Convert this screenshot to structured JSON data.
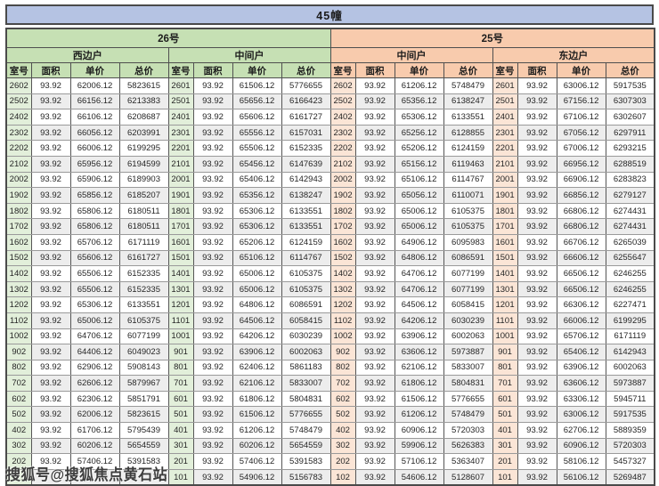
{
  "title": "45幢",
  "sections": [
    {
      "unit_no": "26号",
      "stacks": [
        "西边户",
        "中间户"
      ]
    },
    {
      "unit_no": "25号",
      "stacks": [
        "中间户",
        "东边户"
      ]
    }
  ],
  "column_headers": [
    "室号",
    "面积",
    "单价",
    "总价"
  ],
  "watermark": {
    "text": "搜狐号@搜狐焦点黄石站"
  },
  "obscured_row": {
    "position": "bottom-left group, last row",
    "visible_fragment": "743"
  },
  "colors": {
    "title_bg": "#b5c3e3",
    "green_header": "#c6e0b4",
    "green_room_cell": "#e2efda",
    "orange_header": "#f8cbad",
    "orange_room_cell": "#fbe5d6",
    "stripe": "#ededed",
    "border": "#4a4a4a"
  },
  "rows": [
    [
      "2602",
      "93.92",
      "62006.12",
      "5823615",
      "2601",
      "93.92",
      "61506.12",
      "5776655",
      "2602",
      "93.92",
      "61206.12",
      "5748479",
      "2601",
      "93.92",
      "63006.12",
      "5917535"
    ],
    [
      "2502",
      "93.92",
      "66156.12",
      "6213383",
      "2501",
      "93.92",
      "65656.12",
      "6166423",
      "2502",
      "93.92",
      "65356.12",
      "6138247",
      "2501",
      "93.92",
      "67156.12",
      "6307303"
    ],
    [
      "2402",
      "93.92",
      "66106.12",
      "6208687",
      "2401",
      "93.92",
      "65606.12",
      "6161727",
      "2402",
      "93.92",
      "65306.12",
      "6133551",
      "2401",
      "93.92",
      "67106.12",
      "6302607"
    ],
    [
      "2302",
      "93.92",
      "66056.12",
      "6203991",
      "2301",
      "93.92",
      "65556.12",
      "6157031",
      "2302",
      "93.92",
      "65256.12",
      "6128855",
      "2301",
      "93.92",
      "67056.12",
      "6297911"
    ],
    [
      "2202",
      "93.92",
      "66006.12",
      "6199295",
      "2201",
      "93.92",
      "65506.12",
      "6152335",
      "2202",
      "93.92",
      "65206.12",
      "6124159",
      "2201",
      "93.92",
      "67006.12",
      "6293215"
    ],
    [
      "2102",
      "93.92",
      "65956.12",
      "6194599",
      "2101",
      "93.92",
      "65456.12",
      "6147639",
      "2102",
      "93.92",
      "65156.12",
      "6119463",
      "2101",
      "93.92",
      "66956.12",
      "6288519"
    ],
    [
      "2002",
      "93.92",
      "65906.12",
      "6189903",
      "2001",
      "93.92",
      "65406.12",
      "6142943",
      "2002",
      "93.92",
      "65106.12",
      "6114767",
      "2001",
      "93.92",
      "66906.12",
      "6283823"
    ],
    [
      "1902",
      "93.92",
      "65856.12",
      "6185207",
      "1901",
      "93.92",
      "65356.12",
      "6138247",
      "1902",
      "93.92",
      "65056.12",
      "6110071",
      "1901",
      "93.92",
      "66856.12",
      "6279127"
    ],
    [
      "1802",
      "93.92",
      "65806.12",
      "6180511",
      "1801",
      "93.92",
      "65306.12",
      "6133551",
      "1802",
      "93.92",
      "65006.12",
      "6105375",
      "1801",
      "93.92",
      "66806.12",
      "6274431"
    ],
    [
      "1702",
      "93.92",
      "65806.12",
      "6180511",
      "1701",
      "93.92",
      "65306.12",
      "6133551",
      "1702",
      "93.92",
      "65006.12",
      "6105375",
      "1701",
      "93.92",
      "66806.12",
      "6274431"
    ],
    [
      "1602",
      "93.92",
      "65706.12",
      "6171119",
      "1601",
      "93.92",
      "65206.12",
      "6124159",
      "1602",
      "93.92",
      "64906.12",
      "6095983",
      "1601",
      "93.92",
      "66706.12",
      "6265039"
    ],
    [
      "1502",
      "93.92",
      "65606.12",
      "6161727",
      "1501",
      "93.92",
      "65106.12",
      "6114767",
      "1502",
      "93.92",
      "64806.12",
      "6086591",
      "1501",
      "93.92",
      "66606.12",
      "6255647"
    ],
    [
      "1402",
      "93.92",
      "65506.12",
      "6152335",
      "1401",
      "93.92",
      "65006.12",
      "6105375",
      "1402",
      "93.92",
      "64706.12",
      "6077199",
      "1401",
      "93.92",
      "66506.12",
      "6246255"
    ],
    [
      "1302",
      "93.92",
      "65506.12",
      "6152335",
      "1301",
      "93.92",
      "65006.12",
      "6105375",
      "1302",
      "93.92",
      "64706.12",
      "6077199",
      "1301",
      "93.92",
      "66506.12",
      "6246255"
    ],
    [
      "1202",
      "93.92",
      "65306.12",
      "6133551",
      "1201",
      "93.92",
      "64806.12",
      "6086591",
      "1202",
      "93.92",
      "64506.12",
      "6058415",
      "1201",
      "93.92",
      "66306.12",
      "6227471"
    ],
    [
      "1102",
      "93.92",
      "65006.12",
      "6105375",
      "1101",
      "93.92",
      "64506.12",
      "6058415",
      "1102",
      "93.92",
      "64206.12",
      "6030239",
      "1101",
      "93.92",
      "66006.12",
      "6199295"
    ],
    [
      "1002",
      "93.92",
      "64706.12",
      "6077199",
      "1001",
      "93.92",
      "64206.12",
      "6030239",
      "1002",
      "93.92",
      "63906.12",
      "6002063",
      "1001",
      "93.92",
      "65706.12",
      "6171119"
    ],
    [
      "902",
      "93.92",
      "64406.12",
      "6049023",
      "901",
      "93.92",
      "63906.12",
      "6002063",
      "902",
      "93.92",
      "63606.12",
      "5973887",
      "901",
      "93.92",
      "65406.12",
      "6142943"
    ],
    [
      "802",
      "93.92",
      "62906.12",
      "5908143",
      "801",
      "93.92",
      "62406.12",
      "5861183",
      "802",
      "93.92",
      "62106.12",
      "5833007",
      "801",
      "93.92",
      "63906.12",
      "6002063"
    ],
    [
      "702",
      "93.92",
      "62606.12",
      "5879967",
      "701",
      "93.92",
      "62106.12",
      "5833007",
      "702",
      "93.92",
      "61806.12",
      "5804831",
      "701",
      "93.92",
      "63606.12",
      "5973887"
    ],
    [
      "602",
      "93.92",
      "62306.12",
      "5851791",
      "601",
      "93.92",
      "61806.12",
      "5804831",
      "602",
      "93.92",
      "61506.12",
      "5776655",
      "601",
      "93.92",
      "63306.12",
      "5945711"
    ],
    [
      "502",
      "93.92",
      "62006.12",
      "5823615",
      "501",
      "93.92",
      "61506.12",
      "5776655",
      "502",
      "93.92",
      "61206.12",
      "5748479",
      "501",
      "93.92",
      "63006.12",
      "5917535"
    ],
    [
      "402",
      "93.92",
      "61706.12",
      "5795439",
      "401",
      "93.92",
      "61206.12",
      "5748479",
      "402",
      "93.92",
      "60906.12",
      "5720303",
      "401",
      "93.92",
      "62706.12",
      "5889359"
    ],
    [
      "302",
      "93.92",
      "60206.12",
      "5654559",
      "301",
      "93.92",
      "60206.12",
      "5654559",
      "302",
      "93.92",
      "59906.12",
      "5626383",
      "301",
      "93.92",
      "60906.12",
      "5720303"
    ],
    [
      "202",
      "93.92",
      "57406.12",
      "5391583",
      "201",
      "93.92",
      "57406.12",
      "5391583",
      "202",
      "93.92",
      "57106.12",
      "5363407",
      "201",
      "93.92",
      "58106.12",
      "5457327"
    ],
    [
      "",
      "",
      "",
      "743",
      "101",
      "93.92",
      "54906.12",
      "5156783",
      "102",
      "93.92",
      "54606.12",
      "5128607",
      "101",
      "93.92",
      "56106.12",
      "5269487"
    ]
  ]
}
